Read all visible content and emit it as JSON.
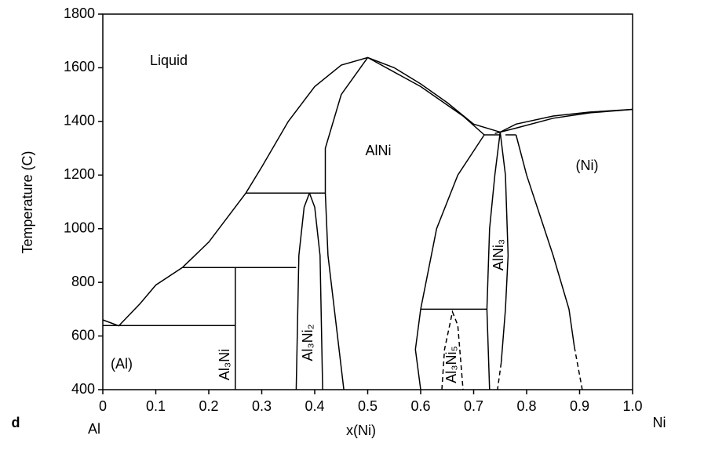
{
  "chart_data": {
    "type": "phase-diagram",
    "color": "#000000",
    "xlabel": "x(Ni)",
    "ylabel": "Temperature (C)",
    "xlim": [
      0,
      1
    ],
    "ylim": [
      400,
      1800
    ],
    "xticks": [
      0,
      0.1,
      0.2,
      0.3,
      0.4,
      0.5,
      0.6,
      0.7,
      0.8,
      0.9,
      {
        "value": 1,
        "label": "1.0"
      }
    ],
    "yticks": [
      400,
      600,
      800,
      1000,
      1200,
      1400,
      1600,
      1800
    ],
    "annotations": [
      "Liquid",
      "AlNi",
      "(Ni)",
      "(Al)",
      "Al₃Ni",
      "Al₃Ni₂",
      "AlNi₃",
      "Al₃Ni₅",
      "d",
      "Al",
      "Ni"
    ],
    "series": [
      {
        "x": [
          0,
          0.03,
          0.07,
          0.1,
          0.15,
          0.2,
          0.27,
          0.3,
          0.35,
          0.4,
          0.45,
          0.5,
          0.55,
          0.6,
          0.65,
          0.7,
          0.75
        ],
        "values": [
          660,
          638,
          720,
          790,
          855,
          950,
          1133,
          1230,
          1400,
          1530,
          1610,
          1638,
          1600,
          1540,
          1470,
          1390,
          1360
        ]
      },
      {
        "x": [
          0.75,
          0.78,
          0.85,
          0.92,
          1
        ],
        "values": [
          1360,
          1390,
          1420,
          1435,
          1445
        ]
      },
      {
        "x": [
          0.74,
          0.78,
          0.85,
          0.92,
          1
        ],
        "values": [
          1355,
          1375,
          1412,
          1432,
          1445
        ]
      },
      {
        "x": [
          0,
          0.25
        ],
        "values": [
          639,
          639
        ]
      },
      {
        "x": [
          0.25,
          0.25
        ],
        "values": [
          400,
          855
        ]
      },
      {
        "x": [
          0.15,
          0.365
        ],
        "values": [
          855,
          855
        ]
      },
      {
        "x": [
          0.27,
          0.42
        ],
        "values": [
          1133,
          1133
        ]
      },
      {
        "x": [
          0.365,
          0.37,
          0.38,
          0.39
        ],
        "values": [
          400,
          900,
          1080,
          1133
        ]
      },
      {
        "x": [
          0.39,
          0.4,
          0.41,
          0.415
        ],
        "values": [
          1133,
          1080,
          900,
          400
        ]
      },
      {
        "x": [
          0.5,
          0.45,
          0.42,
          0.42,
          0.425,
          0.44,
          0.455
        ],
        "values": [
          1638,
          1500,
          1300,
          1133,
          900,
          650,
          400
        ]
      },
      {
        "x": [
          0.5,
          0.6,
          0.68,
          0.72
        ],
        "values": [
          1638,
          1530,
          1420,
          1350
        ]
      },
      {
        "x": [
          0.72,
          0.67,
          0.63,
          0.6,
          0.59,
          0.6
        ],
        "values": [
          1350,
          1200,
          1000,
          700,
          550,
          400
        ]
      },
      {
        "x": [
          0.72,
          0.75
        ],
        "values": [
          1350,
          1350
        ]
      },
      {
        "x": [
          0.75,
          0.74,
          0.73,
          0.725,
          0.73
        ],
        "values": [
          1360,
          1200,
          1000,
          700,
          400
        ]
      },
      {
        "x": [
          0.75,
          0.76,
          0.765,
          0.76,
          0.752
        ],
        "values": [
          1360,
          1200,
          900,
          700,
          500
        ]
      },
      {
        "x": [
          0.752,
          0.745
        ],
        "values": [
          500,
          400
        ],
        "dashed": true
      },
      {
        "x": [
          0.76,
          0.78
        ],
        "values": [
          1350,
          1350
        ]
      },
      {
        "x": [
          0.78,
          0.8,
          0.85,
          0.88,
          0.89
        ],
        "values": [
          1350,
          1200,
          900,
          700,
          560
        ]
      },
      {
        "x": [
          0.89,
          0.905
        ],
        "values": [
          560,
          400
        ],
        "dashed": true
      },
      {
        "x": [
          0.6,
          0.725
        ],
        "values": [
          700,
          700
        ]
      },
      {
        "x": [
          0.64,
          0.645,
          0.66,
          0.67,
          0.68
        ],
        "values": [
          400,
          550,
          690,
          640,
          400
        ],
        "dashed": true
      }
    ]
  }
}
